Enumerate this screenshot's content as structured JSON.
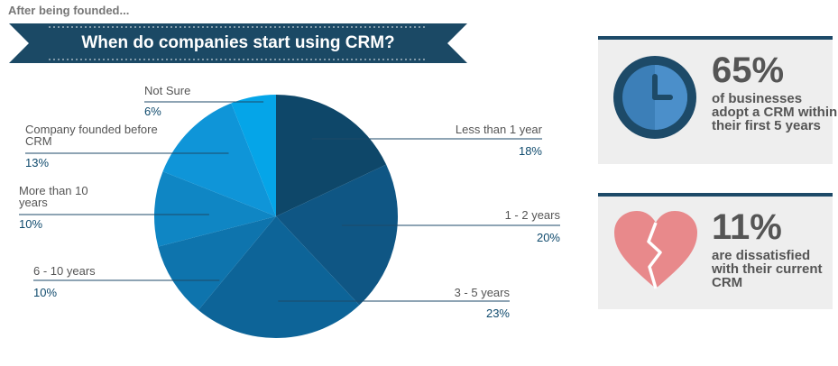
{
  "header": {
    "subtitle": "After being founded...",
    "title": "When do companies start using CRM?"
  },
  "chart_data": {
    "type": "pie",
    "title": "When do companies start using CRM?",
    "slices": [
      {
        "label": "Less than 1 year",
        "value": 18,
        "display": "18%",
        "color": "#0e4769"
      },
      {
        "label": "1 - 2 years",
        "value": 20,
        "display": "20%",
        "color": "#0f5684"
      },
      {
        "label": "3 - 5 years",
        "value": 23,
        "display": "23%",
        "color": "#0d6498"
      },
      {
        "label": "6 - 10 years",
        "value": 10,
        "display": "10%",
        "color": "#0e74ad"
      },
      {
        "label": "More than 10 years",
        "value": 10,
        "display": "10%",
        "color": "#0f86c4"
      },
      {
        "label": "Company founded before CRM",
        "value": 13,
        "display": "13%",
        "color": "#0f95d8"
      },
      {
        "label": "Not Sure",
        "value": 6,
        "display": "6%",
        "color": "#05a5e8"
      }
    ]
  },
  "stats": [
    {
      "number": "65%",
      "text": "of businesses adopt a CRM within their first 5 years",
      "icon": "clock-icon"
    },
    {
      "number": "11%",
      "text": "are dissatisfied with their current CRM",
      "icon": "broken-heart-icon"
    }
  ],
  "colors": {
    "banner": "#1b4965",
    "accent": "#1d4a68",
    "heart": "#e8898b"
  }
}
